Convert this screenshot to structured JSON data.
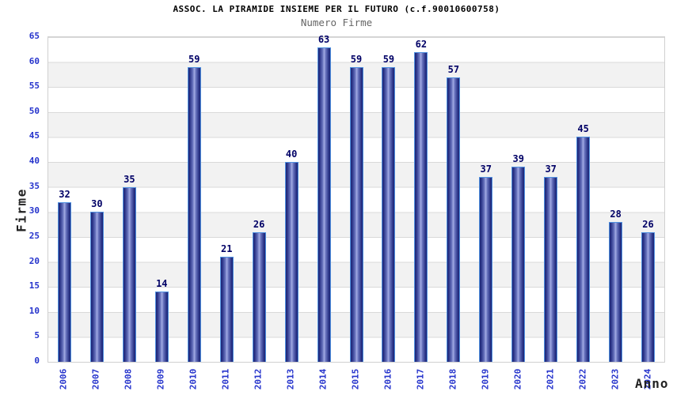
{
  "chart_data": {
    "type": "bar",
    "title": "ASSOC. LA PIRAMIDE INSIEME PER IL FUTURO (c.f.90010600758)",
    "subtitle": "Numero Firme",
    "xlabel": "Anno",
    "ylabel": "Firme",
    "categories": [
      "2006",
      "2007",
      "2008",
      "2009",
      "2010",
      "2011",
      "2012",
      "2013",
      "2014",
      "2015",
      "2016",
      "2017",
      "2018",
      "2019",
      "2020",
      "2021",
      "2022",
      "2023",
      "2024"
    ],
    "values": [
      32,
      30,
      35,
      14,
      59,
      21,
      26,
      40,
      63,
      59,
      59,
      62,
      57,
      37,
      39,
      37,
      45,
      28,
      26
    ],
    "ylim": [
      0,
      65
    ],
    "ytick_step": 5,
    "legend": "none",
    "grid": "horizontal alternating bands every 5 units with light gridlines",
    "colors": {
      "bar_edge_dark": "#1c2575",
      "bar_center_light": "#a3ace4",
      "bar_border": "#4f90e0",
      "tick_label": "#2533cc",
      "value_label": "#000066",
      "axis_title": "#222222",
      "title": "#000000",
      "subtitle": "#666666",
      "band_gray": "#f2f2f2",
      "band_white": "#ffffff",
      "grid_line": "#d9d9d9",
      "plot_border": "#d0d0d0",
      "background": "#ffffff"
    }
  }
}
